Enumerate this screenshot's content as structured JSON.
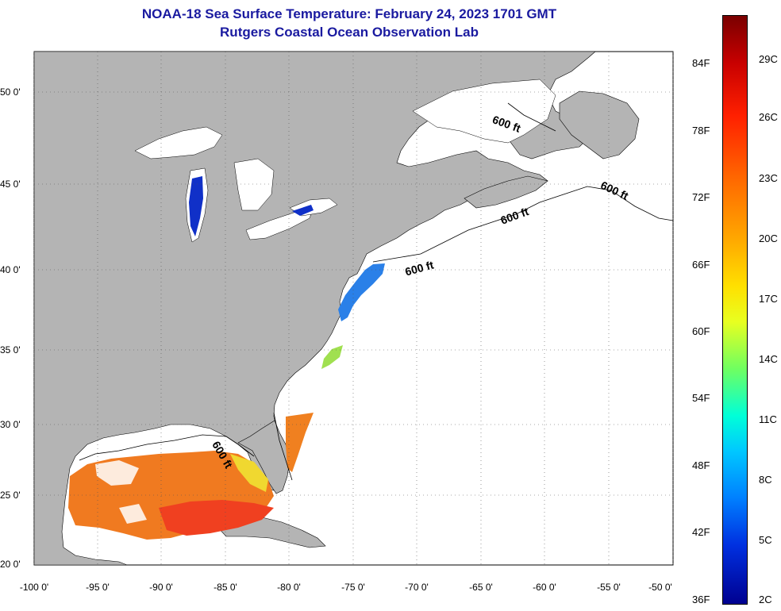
{
  "title_line1": "NOAA-18 Sea Surface Temperature:  February 24, 2023 1701 GMT",
  "title_line2": "Rutgers Coastal Ocean Observation Lab",
  "colors": {
    "land": "#b4b4b4",
    "ocean": "#ffffff",
    "title": "#1a1aa0",
    "grid": "#000000"
  },
  "axes": {
    "x_ticks": [
      "-100 0'",
      "-95 0'",
      "-90 0'",
      "-85 0'",
      "-80 0'",
      "-75 0'",
      "-70 0'",
      "-65 0'",
      "-60 0'",
      "-55 0'",
      "-50 0'"
    ],
    "y_ticks": [
      "50 0'",
      "45 0'",
      "40 0'",
      "35 0'",
      "30 0'",
      "25 0'",
      "20 0'"
    ],
    "lon_range": [
      -100,
      -50
    ],
    "lat_range": [
      20,
      52.5
    ]
  },
  "contour_labels": [
    "600 ft",
    "600 ft",
    "600 ft",
    "600 ft",
    "600 ft"
  ],
  "colorbar": {
    "fahrenheit": [
      "84F",
      "78F",
      "72F",
      "66F",
      "60F",
      "54F",
      "48F",
      "42F",
      "36F"
    ],
    "celsius": [
      "29C",
      "26C",
      "23C",
      "20C",
      "17C",
      "14C",
      "11C",
      "8C",
      "5C",
      "2C"
    ]
  }
}
